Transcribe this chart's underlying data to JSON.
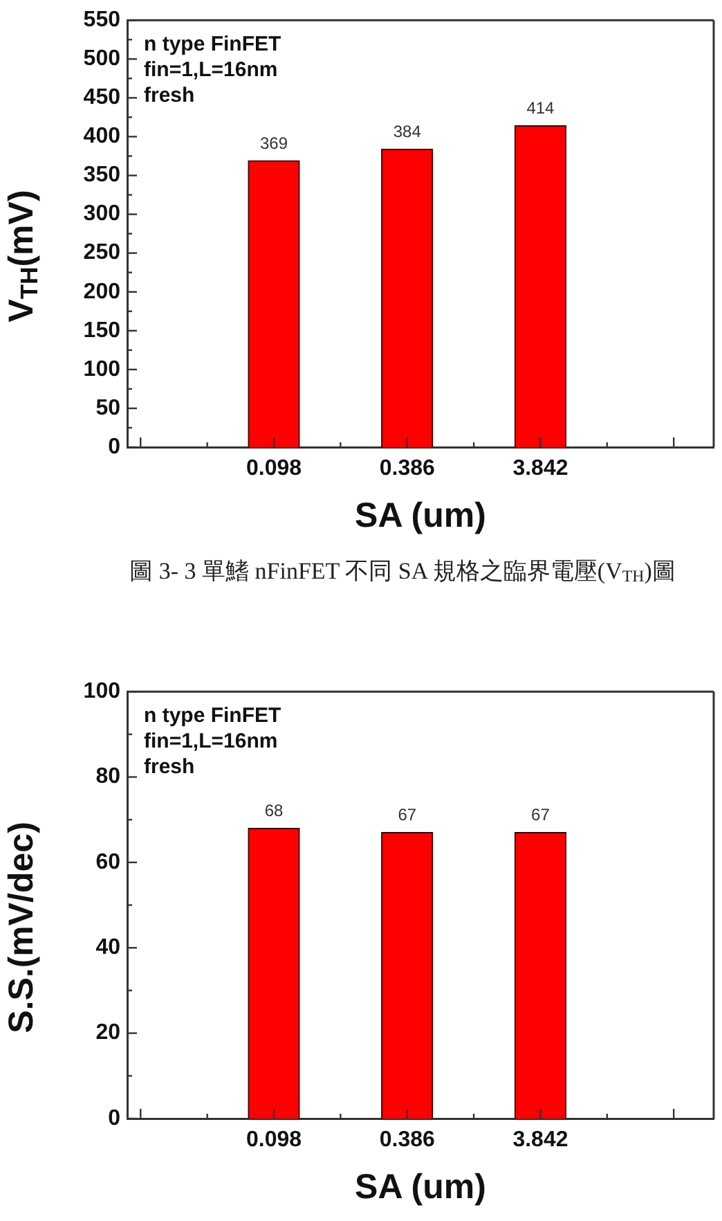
{
  "chart_data": [
    {
      "type": "bar",
      "categories": [
        "0.098",
        "0.386",
        "3.842"
      ],
      "values": [
        369,
        384,
        414
      ],
      "color": "#ff0000",
      "xlabel": "SA (um)",
      "ylabel": "V$_{TH}$(mV)",
      "ylim": [
        0,
        550
      ],
      "yticks": [
        0,
        {
          "value": 25,
          "label": null
        },
        50,
        {
          "value": 75,
          "label": null
        },
        100,
        {
          "value": 125,
          "label": null
        },
        150,
        {
          "value": 175,
          "label": null
        },
        200,
        {
          "value": 225,
          "label": null
        },
        250,
        {
          "value": 275,
          "label": null
        },
        300,
        {
          "value": 325,
          "label": null
        },
        350,
        {
          "value": 375,
          "label": null
        },
        400,
        {
          "value": 425,
          "label": null
        },
        450,
        {
          "value": 475,
          "label": null
        },
        500,
        {
          "value": 525,
          "label": null
        },
        550
      ],
      "data_labels": true,
      "annotations": [
        "n type FinFET",
        "fin=1,L=16nm",
        "fresh"
      ]
    },
    {
      "type": "other",
      "annotations": [
        "圖 3- 3 單鰭 nFinFET 不同 SA 規格之臨界電壓(V$_{TH}$)圖"
      ]
    },
    {
      "type": "bar",
      "categories": [
        "0.098",
        "0.386",
        "3.842"
      ],
      "values": [
        68,
        67,
        67
      ],
      "color": "#ff0000",
      "xlabel": "SA (um)",
      "ylabel": "S.S.(mV/dec)",
      "ylim": [
        0,
        100
      ],
      "yticks": [
        0,
        {
          "value": 10,
          "label": null
        },
        20,
        {
          "value": 30,
          "label": null
        },
        40,
        {
          "value": 50,
          "label": null
        },
        60,
        {
          "value": 70,
          "label": null
        },
        80,
        {
          "value": 90,
          "label": null
        },
        100
      ],
      "data_labels": true,
      "annotations": [
        "n type FinFET",
        "fin=1,L=16nm",
        "fresh"
      ]
    }
  ]
}
